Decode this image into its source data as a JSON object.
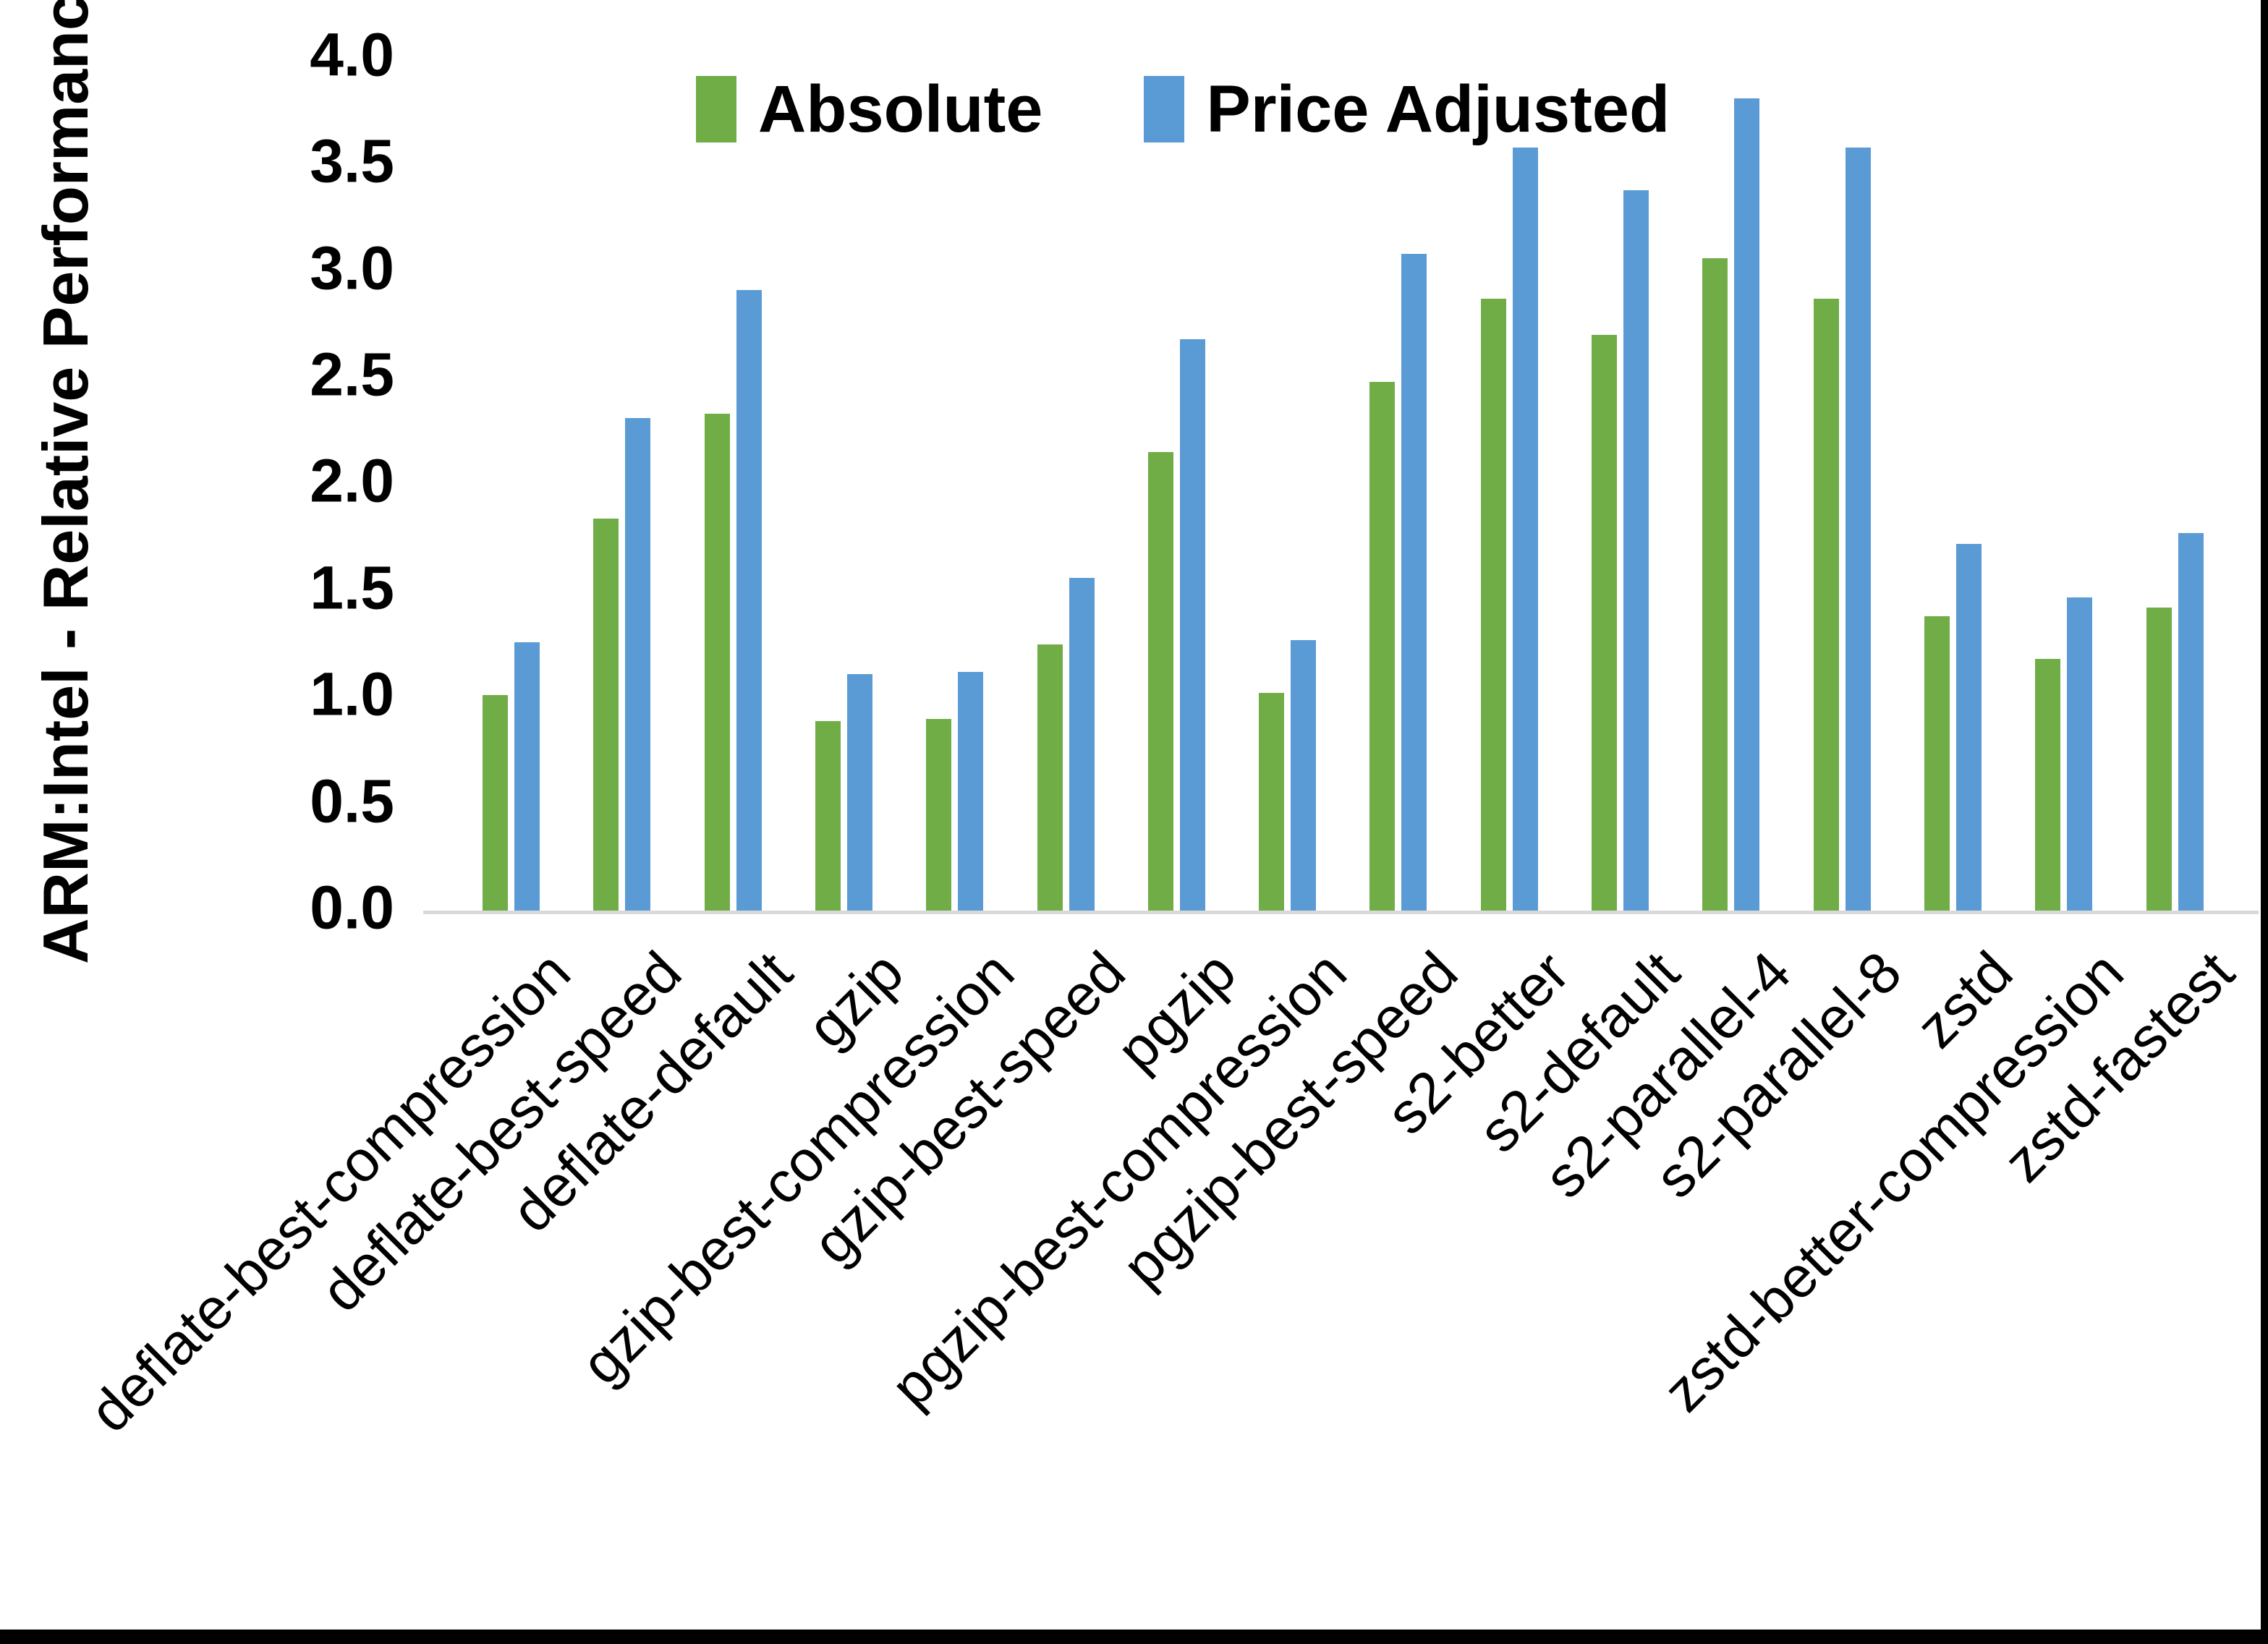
{
  "chart_data": {
    "type": "bar",
    "title": "",
    "ylabel": "ARM:Intel - Relative Performance",
    "xlabel": "",
    "ylim": [
      0.0,
      4.0
    ],
    "ytick_step": 0.5,
    "ytick_labels": [
      "0.0",
      "0.5",
      "1.0",
      "1.5",
      "2.0",
      "2.5",
      "3.0",
      "3.5",
      "4.0"
    ],
    "grid": false,
    "legend_position": "top-center",
    "categories": [
      "deflate-best-compression",
      "deflate-best-speed",
      "deflate-default",
      "gzip",
      "gzip-best-compression",
      "gzip-best-speed",
      "pgzip",
      "pgzip-best-compression",
      "pgzip-best-speed",
      "s2-better",
      "s2-default",
      "s2-parallel-4",
      "s2-parallel-8",
      "zstd",
      "zstd-better-compression",
      "zstd-fastest"
    ],
    "series": [
      {
        "name": "Absolute",
        "color": "#70AD47",
        "values": [
          1.01,
          1.84,
          2.33,
          0.89,
          0.9,
          1.25,
          2.15,
          1.02,
          2.48,
          2.87,
          2.7,
          3.06,
          2.87,
          1.38,
          1.18,
          1.42
        ]
      },
      {
        "name": "Price Adjusted",
        "color": "#5B9BD5",
        "values": [
          1.26,
          2.31,
          2.91,
          1.11,
          1.12,
          1.56,
          2.68,
          1.27,
          3.08,
          3.58,
          3.38,
          3.81,
          3.58,
          1.72,
          1.47,
          1.77
        ]
      }
    ]
  },
  "colors": {
    "background": "#FFFFFF",
    "axis_line": "#D9D9D9",
    "text": "#000000",
    "frame": "#000000"
  }
}
